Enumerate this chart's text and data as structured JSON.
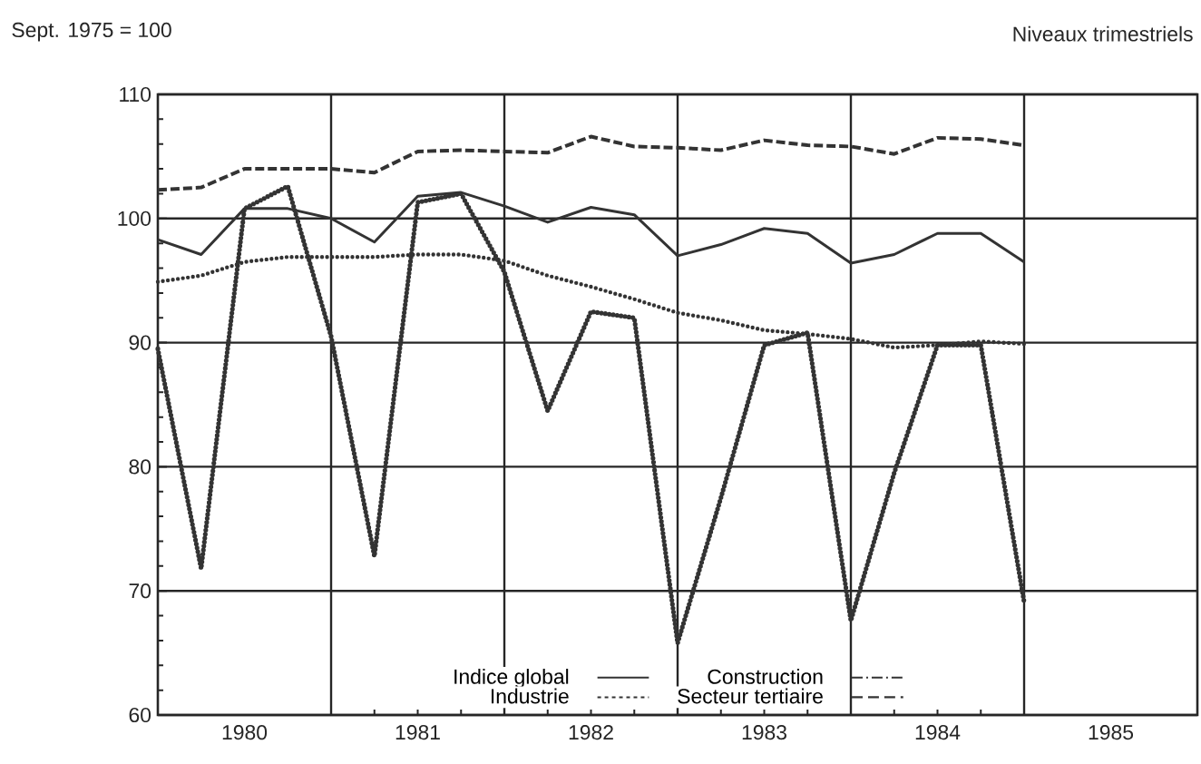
{
  "chart_data": {
    "type": "line",
    "ylabel": "Sept. 1975 = 100",
    "annotations": [
      "Niveaux trimestriels"
    ],
    "x": [
      1980.0,
      1980.25,
      1980.5,
      1980.75,
      1981.0,
      1981.25,
      1981.5,
      1981.75,
      1982.0,
      1982.25,
      1982.5,
      1982.75,
      1983.0,
      1983.25,
      1983.5,
      1983.75,
      1984.0,
      1984.25,
      1984.5,
      1984.75,
      1985.0
    ],
    "series": [
      {
        "name": "Indice global",
        "color": "#333333",
        "line_style": "solid",
        "values": [
          98.3,
          97.1,
          100.8,
          100.8,
          100.0,
          98.1,
          101.8,
          102.1,
          101.0,
          99.7,
          100.9,
          100.3,
          97.0,
          97.9,
          99.2,
          98.8,
          96.4,
          97.1,
          98.8,
          98.8,
          96.5
        ]
      },
      {
        "name": "Construction",
        "color": "#333333",
        "line_style": "dashdot",
        "values": [
          89.5,
          71.8,
          100.8,
          102.6,
          90.5,
          72.8,
          101.3,
          102.0,
          95.7,
          84.5,
          92.5,
          92.0,
          65.8,
          77.5,
          89.8,
          90.8,
          67.6,
          79.5,
          89.8,
          89.8,
          69.1
        ]
      },
      {
        "name": "Industrie",
        "color": "#333333",
        "line_style": "dotted",
        "values": [
          94.9,
          95.4,
          96.5,
          96.9,
          96.9,
          96.9,
          97.1,
          97.1,
          96.6,
          95.4,
          94.5,
          93.5,
          92.4,
          91.8,
          91.0,
          90.7,
          90.3,
          89.6,
          89.8,
          90.1,
          89.9
        ]
      },
      {
        "name": "Secteur tertiaire",
        "color": "#333333",
        "line_style": "dashed",
        "values": [
          102.3,
          102.5,
          104.0,
          104.0,
          104.0,
          103.7,
          105.4,
          105.5,
          105.4,
          105.3,
          106.6,
          105.8,
          105.7,
          105.5,
          106.3,
          105.9,
          105.8,
          105.2,
          106.5,
          106.4,
          105.9
        ]
      }
    ],
    "xlim": [
      1980,
      1986
    ],
    "xticks": [
      {
        "value": 1980.5,
        "label": "1980"
      },
      {
        "value": 1981.5,
        "label": "1981"
      },
      {
        "value": 1982.5,
        "label": "1982"
      },
      {
        "value": 1983.5,
        "label": "1983"
      },
      {
        "value": 1984.5,
        "label": "1984"
      },
      {
        "value": 1985.5,
        "label": "1985"
      },
      {
        "value": 1981,
        "label": null
      },
      {
        "value": 1982,
        "label": null
      },
      {
        "value": 1983,
        "label": null
      },
      {
        "value": 1984,
        "label": null
      },
      {
        "value": 1985,
        "label": null
      }
    ],
    "ylim": [
      60,
      110
    ],
    "yticks": [
      60,
      70,
      80,
      90,
      100,
      110
    ],
    "grid": true,
    "legend": "bottom",
    "marker": "none"
  }
}
